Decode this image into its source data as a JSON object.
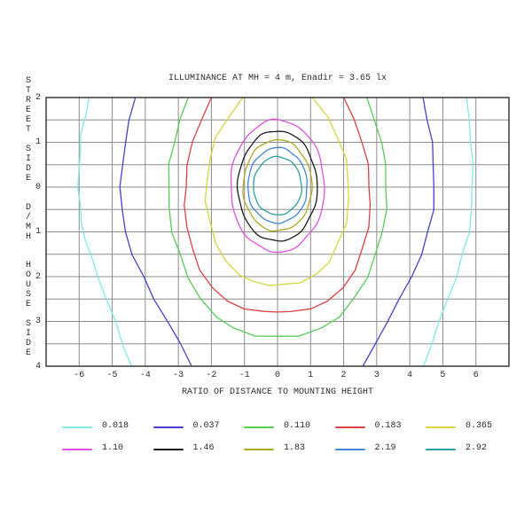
{
  "chart_data": {
    "type": "contour",
    "title": "ILLUMINANCE AT MH = 4 m, Enadir = 3.65 lx",
    "xlabel": "RATIO OF DISTANCE TO MOUNTING HEIGHT",
    "ylabel_segments": [
      "STREET SIDE",
      "D/MH",
      "HOUSE SIDE"
    ],
    "xlim": [
      -7,
      7
    ],
    "ylim": [
      -2,
      4
    ],
    "x_grid_step": 1,
    "y_grid_step": 0.5,
    "grid": true,
    "grid_color": "#8c8c8c",
    "axis_color": "#3a3a3a",
    "text_color": "#2b2b2b",
    "x_ticks": [
      -6,
      -5,
      -4,
      -3,
      -2,
      -1,
      0,
      1,
      2,
      3,
      4,
      5,
      6
    ],
    "y_ticks": [
      -2,
      -1,
      0,
      1,
      2,
      3,
      4
    ],
    "y_tick_labels": [
      "2",
      "1",
      "0",
      "1",
      "2",
      "3",
      "4"
    ],
    "legend_position": "bottom",
    "legend": [
      {
        "label": "0.018",
        "color": "#7fe9e9"
      },
      {
        "label": "0.037",
        "color": "#4343cb"
      },
      {
        "label": "0.110",
        "color": "#55cc55"
      },
      {
        "label": "0.183",
        "color": "#dd4040"
      },
      {
        "label": "0.365",
        "color": "#d6d63e"
      },
      {
        "label": "1.10",
        "color": "#e24fe2"
      },
      {
        "label": "1.46",
        "color": "#1c1c1c"
      },
      {
        "label": "1.83",
        "color": "#a9a925"
      },
      {
        "label": "2.19",
        "color": "#4287d6"
      },
      {
        "label": "2.92",
        "color": "#2b9e9e"
      }
    ],
    "contours": [
      {
        "level": "0.018",
        "color": "#7fe9e9",
        "type": "path",
        "points": [
          [
            -5.7,
            -2.0
          ],
          [
            -5.82,
            -1.6
          ],
          [
            -5.92,
            -1.2
          ],
          [
            -5.98,
            -0.8
          ],
          [
            -6.01,
            -0.4
          ],
          [
            -6.02,
            0.0
          ],
          [
            -5.99,
            0.4
          ],
          [
            -5.92,
            0.8
          ],
          [
            -5.8,
            1.2
          ],
          [
            -5.63,
            1.6
          ],
          [
            -5.42,
            2.0
          ],
          [
            -5.18,
            2.5
          ],
          [
            -4.92,
            3.0
          ],
          [
            -4.66,
            3.5
          ],
          [
            -4.42,
            4.0
          ]
        ]
      },
      {
        "level": "0.018",
        "color": "#7fe9e9",
        "type": "path",
        "points": [
          [
            5.72,
            -2.0
          ],
          [
            5.8,
            -1.5
          ],
          [
            5.86,
            -1.0
          ],
          [
            5.89,
            -0.5
          ],
          [
            5.9,
            0.0
          ],
          [
            5.87,
            0.5
          ],
          [
            5.78,
            1.0
          ],
          [
            5.62,
            1.5
          ],
          [
            5.4,
            2.0
          ],
          [
            5.15,
            2.5
          ],
          [
            4.9,
            3.0
          ],
          [
            4.65,
            3.5
          ],
          [
            4.42,
            4.0
          ]
        ]
      },
      {
        "level": "0.037",
        "color": "#4343cb",
        "type": "path",
        "points": [
          [
            -4.3,
            -2.0
          ],
          [
            -4.47,
            -1.5
          ],
          [
            -4.6,
            -1.0
          ],
          [
            -4.7,
            -0.5
          ],
          [
            -4.74,
            0.0
          ],
          [
            -4.72,
            0.5
          ],
          [
            -4.6,
            1.0
          ],
          [
            -4.38,
            1.5
          ],
          [
            -4.08,
            2.0
          ],
          [
            -3.72,
            2.5
          ],
          [
            -3.33,
            3.0
          ],
          [
            -2.95,
            3.5
          ],
          [
            -2.6,
            4.0
          ]
        ]
      },
      {
        "level": "0.037",
        "color": "#4343cb",
        "type": "path",
        "points": [
          [
            4.4,
            -2.0
          ],
          [
            4.55,
            -1.5
          ],
          [
            4.66,
            -1.0
          ],
          [
            4.72,
            -0.5
          ],
          [
            4.74,
            0.0
          ],
          [
            4.7,
            0.5
          ],
          [
            4.57,
            1.0
          ],
          [
            4.35,
            1.5
          ],
          [
            4.05,
            2.0
          ],
          [
            3.7,
            2.5
          ],
          [
            3.32,
            3.0
          ],
          [
            2.95,
            3.5
          ],
          [
            2.58,
            4.0
          ]
        ]
      },
      {
        "level": "0.110",
        "color": "#55cc55",
        "type": "path",
        "points": [
          [
            -2.7,
            -2.0
          ],
          [
            -2.95,
            -1.5
          ],
          [
            -3.14,
            -1.0
          ],
          [
            -3.26,
            -0.5
          ],
          [
            -3.3,
            0.0
          ],
          [
            -3.28,
            0.5
          ],
          [
            -3.17,
            1.0
          ],
          [
            -2.98,
            1.5
          ],
          [
            -2.7,
            2.0
          ],
          [
            -2.33,
            2.5
          ],
          [
            -1.88,
            2.88
          ],
          [
            -1.32,
            3.16
          ],
          [
            -0.68,
            3.31
          ],
          [
            0.0,
            3.35
          ],
          [
            0.68,
            3.31
          ],
          [
            1.32,
            3.16
          ],
          [
            1.88,
            2.88
          ],
          [
            2.33,
            2.5
          ],
          [
            2.7,
            2.0
          ],
          [
            2.98,
            1.5
          ],
          [
            3.17,
            1.0
          ],
          [
            3.28,
            0.5
          ],
          [
            3.3,
            0.0
          ],
          [
            3.26,
            -0.5
          ],
          [
            3.14,
            -1.0
          ],
          [
            2.95,
            -1.5
          ],
          [
            2.7,
            -2.0
          ]
        ]
      },
      {
        "level": "0.183",
        "color": "#dd4040",
        "type": "path",
        "points": [
          [
            -2.0,
            -2.0
          ],
          [
            -2.33,
            -1.5
          ],
          [
            -2.57,
            -1.0
          ],
          [
            -2.72,
            -0.5
          ],
          [
            -2.79,
            0.0
          ],
          [
            -2.8,
            0.4
          ],
          [
            -2.74,
            0.9
          ],
          [
            -2.58,
            1.4
          ],
          [
            -2.33,
            1.85
          ],
          [
            -1.98,
            2.25
          ],
          [
            -1.52,
            2.55
          ],
          [
            -0.98,
            2.72
          ],
          [
            -0.4,
            2.78
          ],
          [
            0.0,
            2.79
          ],
          [
            0.4,
            2.78
          ],
          [
            0.98,
            2.72
          ],
          [
            1.52,
            2.55
          ],
          [
            1.98,
            2.25
          ],
          [
            2.33,
            1.85
          ],
          [
            2.58,
            1.4
          ],
          [
            2.74,
            0.9
          ],
          [
            2.8,
            0.4
          ],
          [
            2.79,
            0.0
          ],
          [
            2.72,
            -0.5
          ],
          [
            2.57,
            -1.0
          ],
          [
            2.33,
            -1.5
          ],
          [
            2.0,
            -2.0
          ]
        ]
      },
      {
        "level": "0.365",
        "color": "#d6d63e",
        "type": "path",
        "points": [
          [
            -1.05,
            -2.0
          ],
          [
            -1.52,
            -1.55
          ],
          [
            -1.85,
            -1.1
          ],
          [
            -2.06,
            -0.6
          ],
          [
            -2.15,
            -0.1
          ],
          [
            -2.16,
            0.3
          ],
          [
            -2.06,
            0.8
          ],
          [
            -1.86,
            1.25
          ],
          [
            -1.56,
            1.65
          ],
          [
            -1.18,
            1.95
          ],
          [
            -0.72,
            2.12
          ],
          [
            -0.25,
            2.18
          ],
          [
            0.25,
            2.18
          ],
          [
            0.72,
            2.12
          ],
          [
            1.18,
            1.95
          ],
          [
            1.56,
            1.65
          ],
          [
            1.86,
            1.25
          ],
          [
            2.06,
            0.8
          ],
          [
            2.16,
            0.3
          ],
          [
            2.15,
            -0.1
          ],
          [
            2.06,
            -0.6
          ],
          [
            1.85,
            -1.1
          ],
          [
            1.52,
            -1.55
          ],
          [
            1.05,
            -2.0
          ]
        ]
      },
      {
        "level": "1.10",
        "color": "#e24fe2",
        "type": "ellipse",
        "cx": 0,
        "cy": 0,
        "rx": 1.42,
        "ry_top": 1.5,
        "ry_bottom": 1.45
      },
      {
        "level": "1.46",
        "color": "#1c1c1c",
        "type": "ellipse",
        "cx": 0,
        "cy": 0,
        "rx": 1.2,
        "ry_top": 1.26,
        "ry_bottom": 1.21
      },
      {
        "level": "1.83",
        "color": "#a9a925",
        "type": "ellipse",
        "cx": 0,
        "cy": 0,
        "rx": 1.04,
        "ry_top": 1.06,
        "ry_bottom": 0.98
      },
      {
        "level": "2.19",
        "color": "#4287d6",
        "type": "ellipse",
        "cx": 0,
        "cy": 0,
        "rx": 0.9,
        "ry_top": 0.88,
        "ry_bottom": 0.8
      },
      {
        "level": "2.92",
        "color": "#2b9e9e",
        "type": "ellipse",
        "cx": 0,
        "cy": 0,
        "rx": 0.73,
        "ry_top": 0.68,
        "ry_bottom": 0.62
      }
    ]
  }
}
